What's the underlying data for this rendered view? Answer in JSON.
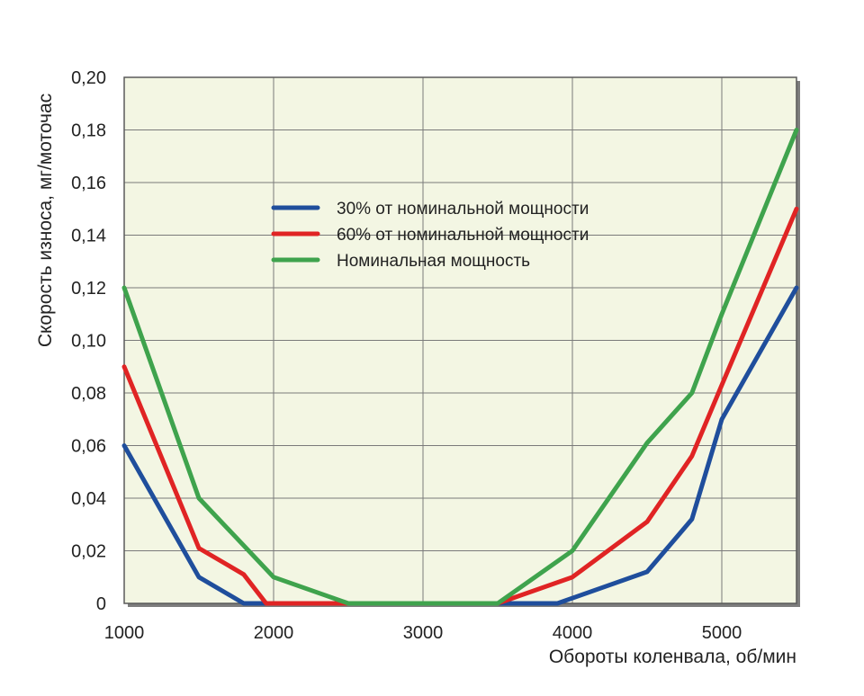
{
  "chart_data": {
    "type": "line",
    "title": "",
    "xlabel": "Обороты коленвала, об/мин",
    "ylabel": "Скорость износа, мг/моточас",
    "xlim": [
      1000,
      5500
    ],
    "ylim": [
      0,
      0.2
    ],
    "x_ticks": [
      1000,
      2000,
      3000,
      4000,
      5000
    ],
    "x_tick_labels": [
      "1000",
      "2000",
      "3000",
      "4000",
      "5000"
    ],
    "y_ticks": [
      0,
      0.02,
      0.04,
      0.06,
      0.08,
      0.1,
      0.12,
      0.14,
      0.16,
      0.18,
      0.2
    ],
    "y_tick_labels": [
      "0",
      "0,02",
      "0,04",
      "0,06",
      "0,08",
      "0,10",
      "0,12",
      "0,14",
      "0,16",
      "0,18",
      "0,20"
    ],
    "grid": true,
    "legend_position": "upper-center",
    "plot_background": "#f3f6e3",
    "series": [
      {
        "name": "30% от номинальной мощности",
        "color": "#1f4e9c",
        "x": [
          1000,
          1500,
          1800,
          2000,
          3500,
          3900,
          4500,
          4800,
          5000,
          5500
        ],
        "y": [
          0.06,
          0.01,
          0.0,
          0.0,
          0.0,
          0.0,
          0.012,
          0.032,
          0.07,
          0.12
        ]
      },
      {
        "name": "60% от номинальной мощности",
        "color": "#e02424",
        "x": [
          1000,
          1500,
          1800,
          1950,
          3500,
          4000,
          4500,
          4800,
          5000,
          5500
        ],
        "y": [
          0.09,
          0.021,
          0.011,
          0.0,
          0.0,
          0.01,
          0.031,
          0.056,
          0.083,
          0.15
        ]
      },
      {
        "name": "Номинальная мощность",
        "color": "#3fa34d",
        "x": [
          1000,
          1500,
          2000,
          2500,
          3000,
          3500,
          4000,
          4500,
          4800,
          5000,
          5500
        ],
        "y": [
          0.12,
          0.04,
          0.01,
          0.0,
          0.0,
          0.0,
          0.02,
          0.061,
          0.08,
          0.11,
          0.18
        ]
      }
    ]
  }
}
